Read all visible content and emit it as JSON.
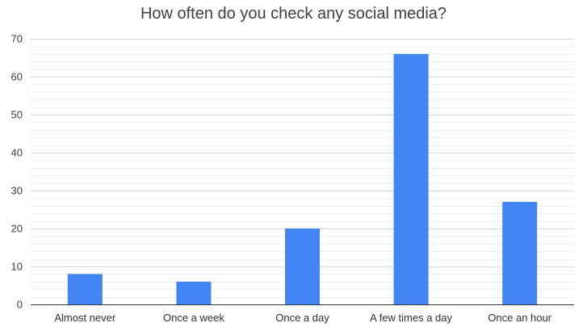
{
  "chart_data": {
    "type": "bar",
    "title": "How often do you check any social media?",
    "xlabel": "",
    "ylabel": "",
    "categories": [
      "Almost never",
      "Once a week",
      "Once a day",
      "A few times a day",
      "Once an hour"
    ],
    "values": [
      8,
      6,
      20,
      66,
      27
    ],
    "ylim": [
      0,
      70
    ],
    "yticks": [
      0,
      10,
      20,
      30,
      40,
      50,
      60,
      70
    ],
    "grid": true,
    "minor_grid": true,
    "legend": "none",
    "bar_color": "#4285F4",
    "grid_color": "#d9d9d9",
    "minor_grid_color": "#eeeeee"
  }
}
